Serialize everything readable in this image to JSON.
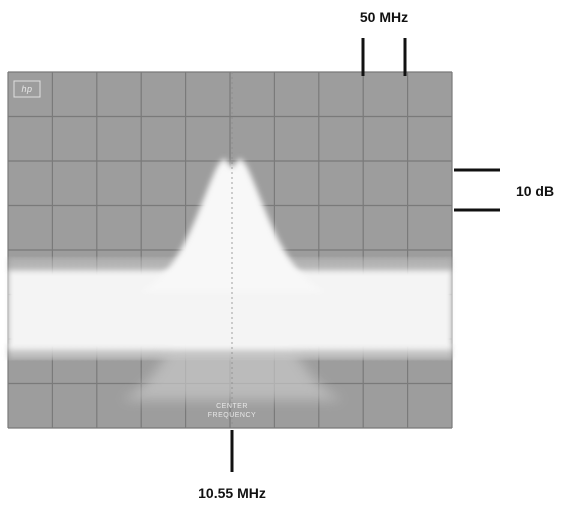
{
  "annotations": {
    "frequency_span": "50 MHz",
    "amplitude_scale": "10 dB",
    "center_frequency": "10.55 MHz"
  },
  "screen": {
    "logo": "hp",
    "center_label": [
      "CENTER",
      "FREQUENCY"
    ]
  }
}
